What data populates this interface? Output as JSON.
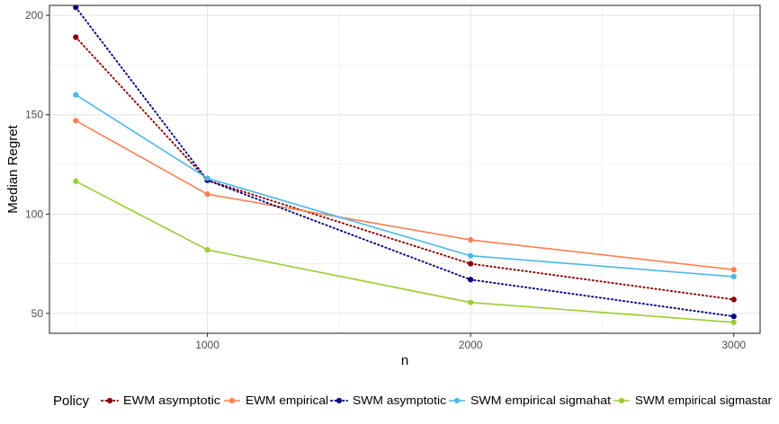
{
  "chart_data": {
    "type": "line",
    "title": "",
    "xlabel": "n",
    "ylabel": "Median Regret",
    "x": [
      500,
      1000,
      2000,
      3000
    ],
    "xlim": [
      400,
      3100
    ],
    "ylim": [
      40,
      205
    ],
    "xticks": [
      1000,
      2000,
      3000
    ],
    "xtick_labels": [
      "1000",
      "2000",
      "3000"
    ],
    "yticks": [
      50,
      100,
      150,
      200
    ],
    "ytick_labels": [
      "50",
      "100",
      "150",
      "200"
    ],
    "grid": true,
    "legend": {
      "title": "Policy",
      "position": "bottom"
    },
    "series": [
      {
        "name": "EWM asymptotic",
        "values": [
          189,
          117,
          75,
          57
        ],
        "color": "#8b0000",
        "style": "dotted"
      },
      {
        "name": "EWM empirical",
        "values": [
          147,
          110,
          87,
          72
        ],
        "color": "#ff7f50",
        "style": "solid"
      },
      {
        "name": "SWM asymptotic",
        "values": [
          204,
          117,
          67,
          48.5
        ],
        "color": "#000080",
        "style": "dotted"
      },
      {
        "name": "SWM empirical sigmahat",
        "values": [
          160,
          118,
          79,
          68.5
        ],
        "color": "#4db8e8",
        "style": "solid"
      },
      {
        "name": "SWM empirical sigmastar",
        "values": [
          116.5,
          82,
          55.5,
          45.5
        ],
        "color": "#9acd32",
        "style": "solid"
      }
    ]
  }
}
